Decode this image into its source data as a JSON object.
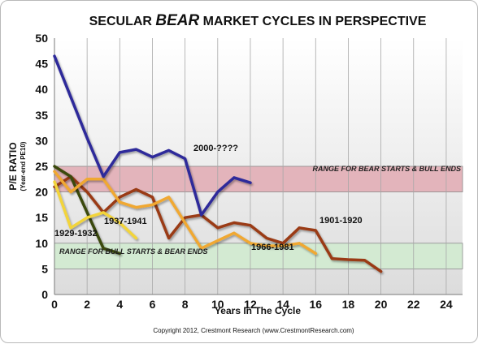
{
  "chart_data": {
    "type": "line",
    "title_parts": [
      "SECULAR ",
      "BEAR",
      " MARKET CYCLES IN PERSPECTIVE"
    ],
    "xlabel": "Years In The Cycle",
    "ylabel": "P/E RATIO",
    "ylabel_sub": "(Year-end PE10)",
    "xlim": [
      0,
      25
    ],
    "ylim": [
      0,
      50
    ],
    "xticks": [
      0,
      2,
      4,
      6,
      8,
      10,
      12,
      14,
      16,
      18,
      20,
      22,
      24
    ],
    "yticks": [
      0,
      5,
      10,
      15,
      20,
      25,
      30,
      35,
      40,
      45,
      50
    ],
    "grid": "vertical",
    "bands": [
      {
        "label": "RANGE FOR BEAR STARTS & BULL ENDS",
        "from": 20,
        "to": 25,
        "color": "#e3b4bb"
      },
      {
        "label": "RANGE FOR BULL STARTS & BEAR ENDS",
        "from": 5,
        "to": 10,
        "color": "#d3ead2"
      }
    ],
    "series": [
      {
        "name": "1901-1920",
        "color": "#9a3a12",
        "x": [
          0,
          1,
          2,
          3,
          4,
          5,
          6,
          7,
          8,
          9,
          10,
          11,
          12,
          13,
          14,
          15,
          16,
          17,
          18,
          19,
          20
        ],
        "y": [
          21,
          23,
          20,
          16,
          19,
          20.5,
          19,
          11,
          15,
          15.5,
          13,
          14,
          13.5,
          11,
          10,
          13,
          12.5,
          7,
          6.8,
          6.7,
          4.5
        ]
      },
      {
        "name": "1929-1932",
        "color": "#3a4a10",
        "x": [
          0,
          1,
          2,
          3,
          4
        ],
        "y": [
          25,
          23,
          16,
          9,
          8
        ]
      },
      {
        "name": "1937-1941",
        "color": "#f2d43a",
        "x": [
          0,
          1,
          2,
          3,
          4,
          5
        ],
        "y": [
          22,
          13,
          15,
          16,
          14,
          11
        ]
      },
      {
        "name": "1966-1981",
        "color": "#f0a830",
        "x": [
          0,
          1,
          2,
          3,
          4,
          5,
          6,
          7,
          8,
          9,
          10,
          11,
          12,
          13,
          14,
          15,
          16
        ],
        "y": [
          24,
          20,
          22.5,
          22.5,
          18,
          17,
          17.5,
          19,
          14,
          9,
          10.5,
          12,
          10,
          9.5,
          9.5,
          10,
          8
        ]
      },
      {
        "name": "2000-????",
        "color": "#2e2a9a",
        "x": [
          0,
          1,
          2,
          3,
          4,
          5,
          6,
          7,
          8,
          9,
          10,
          11,
          12
        ],
        "y": [
          46.5,
          38.5,
          30.5,
          23,
          27.7,
          28.3,
          26.8,
          28.1,
          26.5,
          15.5,
          20,
          22.8,
          21.8
        ]
      }
    ],
    "annotations": {
      "copyright": "Copyright 2012, Crestmont Research (www.CrestmontResearch.com)"
    }
  }
}
